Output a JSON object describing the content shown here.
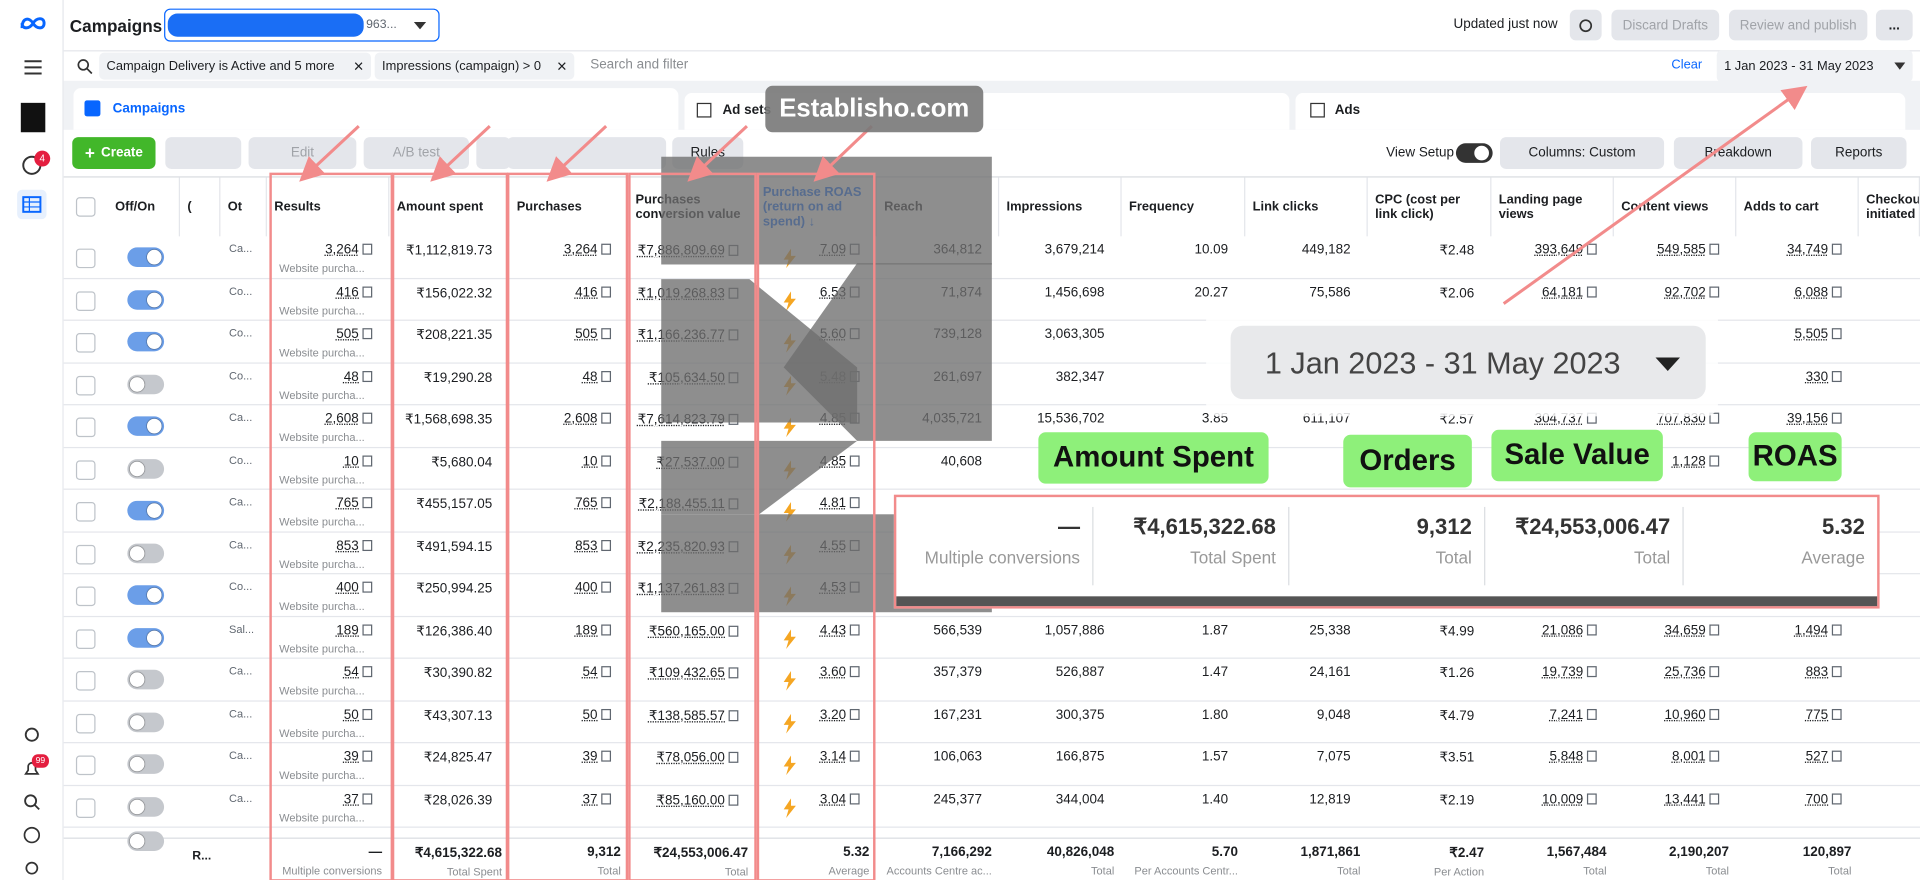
{
  "header": {
    "title": "Campaigns",
    "account": "963...",
    "status": "Updated just now",
    "buttons": [
      "Discard Drafts",
      "Review and publish",
      "..."
    ]
  },
  "sidebar": {
    "badges": [
      "4",
      "99"
    ]
  },
  "filters": {
    "chips": [
      "Campaign Delivery is Active and 5 more",
      "Impressions (campaign) > 0"
    ],
    "search": "Search and filter",
    "clear": "Clear",
    "date": "1 Jan 2023 - 31 May 2023"
  },
  "tabs": [
    "Campaigns",
    "Ad sets",
    "Ads"
  ],
  "toolbar": {
    "left": [
      "Create",
      "Edit",
      "A/B test",
      "Rules"
    ],
    "right": [
      "View Setup",
      "Columns: Custom",
      "Breakdown",
      "Reports"
    ]
  },
  "table": {
    "columns": [
      "Off/On",
      "(",
      "Ot",
      "Results",
      "Amount spent",
      "Purchases",
      "Purchases conversion value",
      "Purchase ROAS (return on ad spend) ↓",
      "Reach",
      "Impressions",
      "Frequency",
      "Link clicks",
      "CPC (cost per link click)",
      "Landing page views",
      "Content views",
      "Adds to cart",
      "Checkouts initiated"
    ],
    "rows": [
      {
        "on": true,
        "objective": "Ca...",
        "results": "3,264",
        "result_type": "Website purcha...",
        "cells": [
          "₹1,112,819.73",
          "3,264",
          "₹7,886,809.69",
          "7.09",
          "364,812",
          "3,679,214",
          "10.09",
          "449,182",
          "₹2.48",
          "393,649",
          "549,585",
          "34,749"
        ]
      },
      {
        "on": true,
        "objective": "Co...",
        "results": "416",
        "result_type": "Website purcha...",
        "cells": [
          "₹156,022.32",
          "416",
          "₹1,019,268.83",
          "6.53",
          "71,874",
          "1,456,698",
          "20.27",
          "75,586",
          "₹2.06",
          "64,181",
          "92,702",
          "6,088"
        ]
      },
      {
        "on": true,
        "objective": "Co...",
        "results": "505",
        "result_type": "Website purcha...",
        "cells": [
          "₹208,221.35",
          "505",
          "₹1,166,236.77",
          "5.60",
          "739,128",
          "3,063,305",
          null,
          null,
          null,
          null,
          null,
          "5,505"
        ]
      },
      {
        "on": false,
        "objective": "Co...",
        "results": "48",
        "result_type": "Website purcha...",
        "cells": [
          "₹19,290.28",
          "48",
          "₹105,634.50",
          "5.48",
          "261,697",
          "382,347",
          null,
          null,
          null,
          null,
          null,
          "330"
        ]
      },
      {
        "on": true,
        "objective": "Ca...",
        "results": "2,608",
        "result_type": "Website purcha...",
        "cells": [
          "₹1,568,698.35",
          "2,608",
          "₹7,614,823.79",
          "4.85",
          "4,035,721",
          "15,536,702",
          "3.85",
          "611,107",
          "₹2.57",
          "304,737",
          "707,830",
          "39,156"
        ]
      },
      {
        "on": false,
        "objective": "Co...",
        "results": "10",
        "result_type": "Website purcha...",
        "cells": [
          "₹5,680.04",
          "10",
          "₹27,537.00",
          "4.85",
          "40,608",
          null,
          null,
          null,
          null,
          null,
          "1,128",
          null
        ]
      },
      {
        "on": true,
        "objective": "Ca...",
        "results": "765",
        "result_type": "Website purcha...",
        "cells": [
          "₹455,157.05",
          "765",
          "₹2,188,455.11",
          "4.81",
          null,
          null,
          null,
          null,
          null,
          null,
          null,
          null
        ]
      },
      {
        "on": false,
        "objective": "Ca...",
        "results": "853",
        "result_type": "Website purcha...",
        "cells": [
          "₹491,594.15",
          "853",
          "₹2,235,820.93",
          "4.55",
          null,
          null,
          null,
          null,
          null,
          null,
          null,
          null
        ]
      },
      {
        "on": true,
        "objective": "Co...",
        "results": "400",
        "result_type": "Website purcha...",
        "cells": [
          "₹250,994.25",
          "400",
          "₹1,137,261.83",
          "4.53",
          null,
          null,
          null,
          null,
          null,
          null,
          null,
          null
        ]
      },
      {
        "on": true,
        "objective": "Sal...",
        "results": "189",
        "result_type": "Website purcha...",
        "cells": [
          "₹126,386.40",
          "189",
          "₹560,165.00",
          "4.43",
          "566,539",
          "1,057,886",
          "1.87",
          "25,338",
          "₹4.99",
          "21,086",
          "34,659",
          "1,494"
        ]
      },
      {
        "on": false,
        "objective": "Ca...",
        "results": "54",
        "result_type": "Website purcha...",
        "cells": [
          "₹30,390.82",
          "54",
          "₹109,432.65",
          "3.60",
          "357,379",
          "526,887",
          "1.47",
          "24,161",
          "₹1.26",
          "19,739",
          "25,736",
          "883"
        ]
      },
      {
        "on": false,
        "objective": "Ca...",
        "results": "50",
        "result_type": "Website purcha...",
        "cells": [
          "₹43,307.13",
          "50",
          "₹138,585.57",
          "3.20",
          "167,231",
          "300,375",
          "1.80",
          "9,048",
          "₹4.79",
          "7,241",
          "10,960",
          "775"
        ]
      },
      {
        "on": false,
        "objective": "Ca...",
        "results": "39",
        "result_type": "Website purcha...",
        "cells": [
          "₹24,825.47",
          "39",
          "₹78,056.00",
          "3.14",
          "106,063",
          "166,875",
          "1.57",
          "7,075",
          "₹3.51",
          "5,848",
          "8,001",
          "527"
        ]
      },
      {
        "on": false,
        "objective": "Ca...",
        "results": "37",
        "result_type": "Website purcha...",
        "cells": [
          "₹28,026.39",
          "37",
          "₹85,160.00",
          "3.04",
          "245,377",
          "344,004",
          "1.40",
          "12,819",
          "₹2.19",
          "10,009",
          "13,441",
          "700"
        ]
      }
    ],
    "totals": {
      "objective": "R...",
      "results": {
        "value": "—",
        "note": "Multiple conversions"
      },
      "cells": [
        {
          "value": "₹4,615,322.68",
          "note": "Total Spent"
        },
        {
          "value": "9,312",
          "note": "Total"
        },
        {
          "value": "₹24,553,006.47",
          "note": "Total"
        },
        {
          "value": "5.32",
          "note": "Average"
        },
        {
          "value": "7,166,292",
          "note": "Accounts Centre ac..."
        },
        {
          "value": "40,826,048",
          "note": "Total"
        },
        {
          "value": "5.70",
          "note": "Per Accounts Centr..."
        },
        {
          "value": "1,871,861",
          "note": "Total"
        },
        {
          "value": "₹2.47",
          "note": "Per Action"
        },
        {
          "value": "1,567,484",
          "note": "Total"
        },
        {
          "value": "2,190,207",
          "note": "Total"
        },
        {
          "value": "120,897",
          "note": "Total"
        }
      ]
    }
  },
  "overlay": {
    "watermark": "Establisho.com",
    "zoom_date": "1 Jan 2023 - 31 May 2023",
    "labels": [
      "Amount Spent",
      "Orders",
      "Sale Value",
      "ROAS"
    ],
    "zoom_totals": [
      {
        "value": "—",
        "note": "Multiple conversions"
      },
      {
        "value": "₹4,615,322.68",
        "note": "Total Spent"
      },
      {
        "value": "9,312",
        "note": "Total"
      },
      {
        "value": "₹24,553,006.47",
        "note": "Total"
      },
      {
        "value": "5.32",
        "note": "Average"
      }
    ]
  }
}
